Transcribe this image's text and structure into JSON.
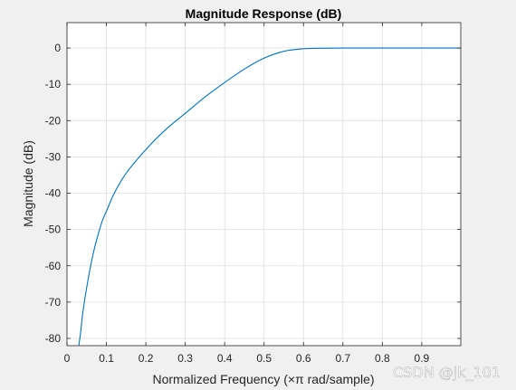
{
  "chart_data": {
    "type": "line",
    "title": "Magnitude Response (dB)",
    "xlabel": "Normalized Frequency (×π rad/sample)",
    "ylabel": "Magnitude (dB)",
    "xlim": [
      0,
      0.999
    ],
    "ylim": [
      -82,
      7
    ],
    "xticks": [
      0,
      0.1,
      0.2,
      0.3,
      0.4,
      0.5,
      0.6,
      0.7,
      0.8,
      0.9
    ],
    "xtick_labels": [
      "0",
      "0.1",
      "0.2",
      "0.3",
      "0.4",
      "0.5",
      "0.6",
      "0.7",
      "0.8",
      "0.9"
    ],
    "yticks": [
      0,
      -10,
      -20,
      -30,
      -40,
      -50,
      -60,
      -70,
      -80
    ],
    "ytick_labels": [
      "0",
      "-10",
      "-20",
      "-30",
      "-40",
      "-50",
      "-60",
      "-70",
      "-80"
    ],
    "grid": true,
    "series": [
      {
        "color": "#0072bd",
        "x": [
          0.03,
          0.035,
          0.04,
          0.05,
          0.06,
          0.07,
          0.08,
          0.09,
          0.1,
          0.12,
          0.15,
          0.2,
          0.25,
          0.3,
          0.35,
          0.4,
          0.45,
          0.5,
          0.55,
          0.6,
          0.65,
          0.7,
          0.8,
          0.9,
          0.999
        ],
        "y": [
          -82,
          -78,
          -73,
          -66,
          -60,
          -55,
          -51,
          -47.5,
          -45,
          -40,
          -34.5,
          -28,
          -22.5,
          -18,
          -13.5,
          -9.5,
          -5.8,
          -2.8,
          -0.9,
          -0.2,
          -0.05,
          0,
          0,
          0,
          0
        ]
      }
    ]
  },
  "watermark": "CSDN @jk_101"
}
